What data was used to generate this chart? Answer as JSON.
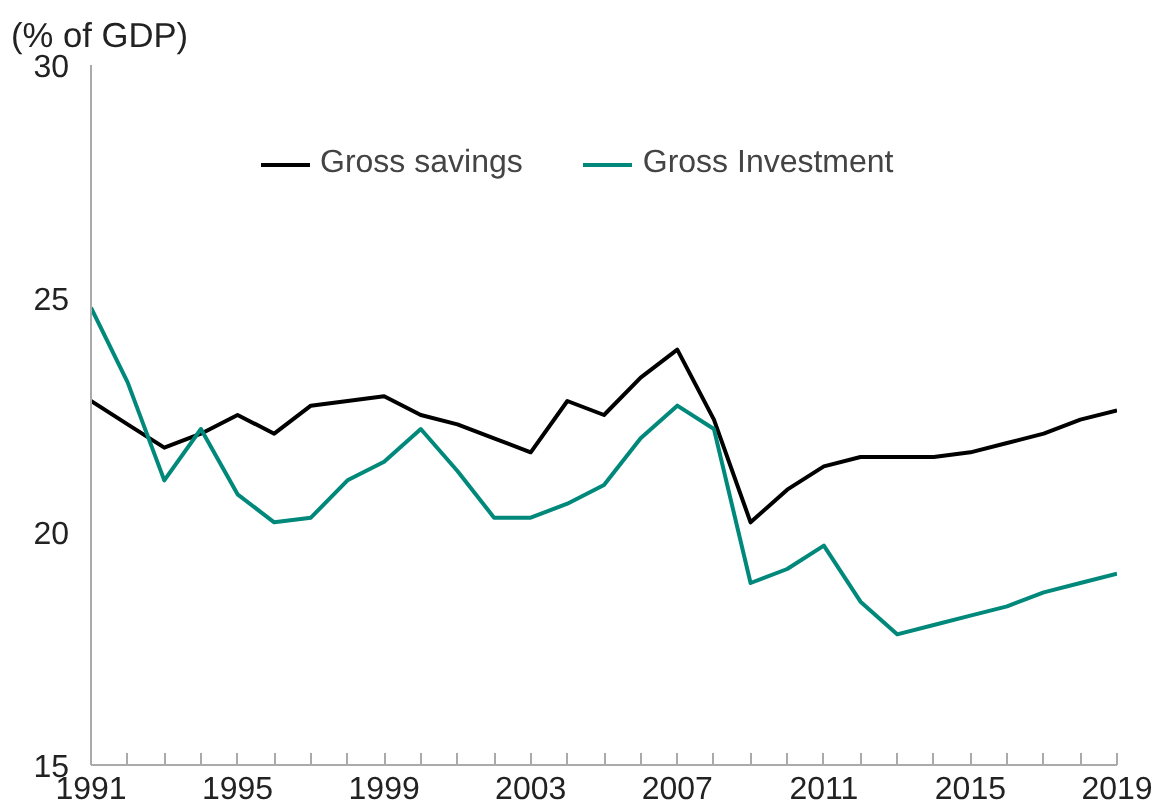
{
  "chart_data": {
    "type": "line",
    "ylabel": "(% of GDP)",
    "x": [
      1991,
      1992,
      1993,
      1994,
      1995,
      1996,
      1997,
      1998,
      1999,
      2000,
      2001,
      2002,
      2003,
      2004,
      2005,
      2006,
      2007,
      2008,
      2009,
      2010,
      2011,
      2012,
      2013,
      2014,
      2015,
      2016,
      2017,
      2018,
      2019
    ],
    "series": [
      {
        "name": "Gross savings",
        "color": "#000000",
        "values": [
          22.8,
          22.3,
          21.8,
          22.1,
          22.5,
          22.1,
          22.7,
          22.8,
          22.9,
          22.5,
          22.3,
          22.0,
          21.7,
          22.8,
          22.5,
          23.3,
          23.9,
          22.4,
          20.2,
          20.9,
          21.4,
          21.6,
          21.6,
          21.6,
          21.7,
          21.9,
          22.1,
          22.4,
          22.6
        ]
      },
      {
        "name": "Gross Investment",
        "color": "#00897b",
        "values": [
          24.8,
          23.2,
          21.1,
          22.2,
          20.8,
          20.2,
          20.3,
          21.1,
          21.5,
          22.2,
          21.3,
          20.3,
          20.3,
          20.6,
          21.0,
          22.0,
          22.7,
          22.2,
          18.9,
          19.2,
          19.7,
          18.5,
          17.8,
          18.0,
          18.2,
          18.4,
          18.7,
          18.9,
          19.1
        ]
      }
    ],
    "xlim": [
      1991,
      2019
    ],
    "xticks": [
      1991,
      {
        "value": 1992,
        "label": null
      },
      {
        "value": 1993,
        "label": null
      },
      {
        "value": 1994,
        "label": null
      },
      1995,
      {
        "value": 1996,
        "label": null
      },
      {
        "value": 1997,
        "label": null
      },
      {
        "value": 1998,
        "label": null
      },
      1999,
      {
        "value": 2000,
        "label": null
      },
      {
        "value": 2001,
        "label": null
      },
      {
        "value": 2002,
        "label": null
      },
      2003,
      {
        "value": 2004,
        "label": null
      },
      {
        "value": 2005,
        "label": null
      },
      {
        "value": 2006,
        "label": null
      },
      2007,
      {
        "value": 2008,
        "label": null
      },
      {
        "value": 2009,
        "label": null
      },
      {
        "value": 2010,
        "label": null
      },
      2011,
      {
        "value": 2012,
        "label": null
      },
      {
        "value": 2013,
        "label": null
      },
      {
        "value": 2014,
        "label": null
      },
      2015,
      {
        "value": 2016,
        "label": null
      },
      {
        "value": 2017,
        "label": null
      },
      {
        "value": 2018,
        "label": null
      },
      2019
    ],
    "ylim": [
      15,
      30
    ],
    "yticks": [
      15,
      20,
      25,
      30
    ],
    "legend": "top",
    "grid": false,
    "marker": "none",
    "line_style": "solid"
  }
}
